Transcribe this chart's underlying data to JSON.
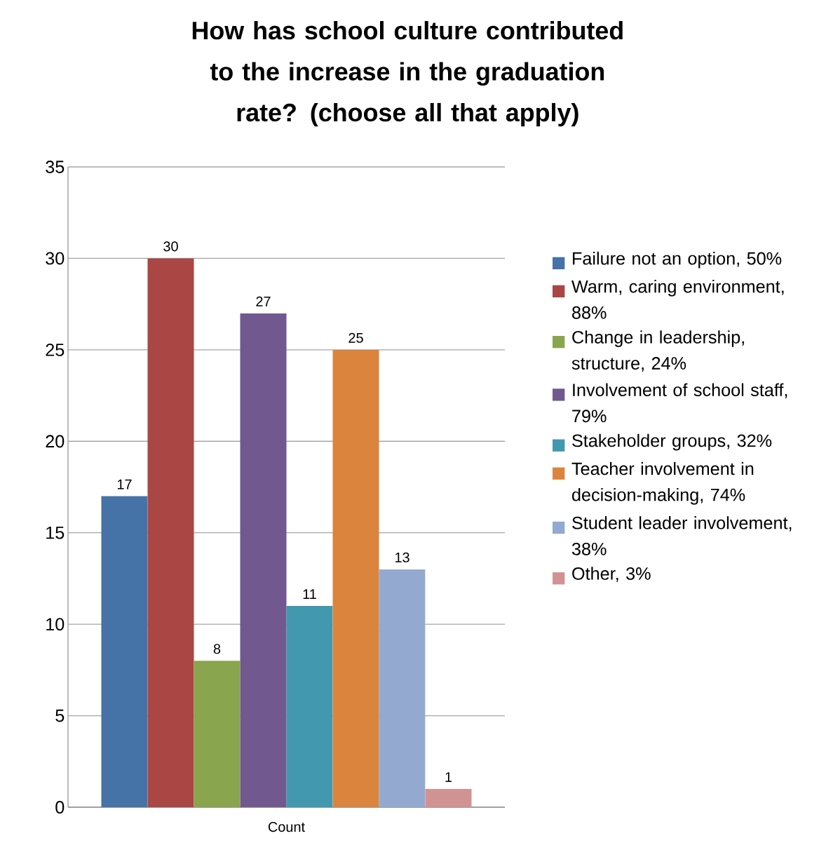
{
  "chart_data": {
    "type": "bar",
    "title": "How has school culture contributed to the increase in the graduation rate?  (choose all that apply)",
    "categories": [
      "Count"
    ],
    "series": [
      {
        "name": "Failure not an option, 50%",
        "color": "#4572a7",
        "values": [
          17
        ]
      },
      {
        "name": "Warm, caring environment, 88%",
        "color": "#aa4643",
        "values": [
          30
        ]
      },
      {
        "name": "Change in leadership, structure, 24%",
        "color": "#89a54e",
        "values": [
          8
        ]
      },
      {
        "name": "Involvement of school staff, 79%",
        "color": "#71588f",
        "values": [
          27
        ]
      },
      {
        "name": "Stakeholder groups, 32%",
        "color": "#4198af",
        "values": [
          11
        ]
      },
      {
        "name": "Teacher involvement in decision-making, 74%",
        "color": "#db843d",
        "values": [
          25
        ]
      },
      {
        "name": "Student leader involvement, 38%",
        "color": "#93a9cf",
        "values": [
          13
        ]
      },
      {
        "name": "Other, 3%",
        "color": "#d19392",
        "values": [
          1
        ]
      }
    ],
    "ylim": [
      0,
      35
    ],
    "yticks": [
      0,
      5,
      10,
      15,
      20,
      25,
      30,
      35
    ],
    "grid": "y",
    "legend": "right",
    "data_labels": true
  }
}
